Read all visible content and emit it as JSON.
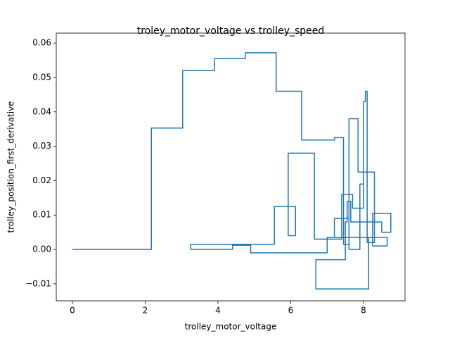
{
  "chart_data": {
    "type": "line",
    "title": "troley_motor_voltage vs trolley_speed",
    "x_label": "trolley_motor_voltage",
    "y_label": "trolley_position_first_derivative",
    "xlim": [
      -0.444,
      9.14
    ],
    "ylim": [
      -0.01495,
      0.0629
    ],
    "xticks": [
      0,
      2,
      4,
      6,
      8
    ],
    "yticks": [
      {
        "value": -0.01,
        "label": "−0.01"
      },
      {
        "value": 0,
        "label": "0.00"
      },
      {
        "value": 0.01,
        "label": "0.01"
      },
      {
        "value": 0.02,
        "label": "0.02"
      },
      {
        "value": 0.03,
        "label": "0.03"
      },
      {
        "value": 0.04,
        "label": "0.04"
      },
      {
        "value": 0.05,
        "label": "0.05"
      },
      {
        "value": 0.06,
        "label": "0.06"
      }
    ],
    "series": [
      {
        "color": "#1f77b4",
        "x": [
          0,
          2.17,
          2.17,
          3.03,
          3.03,
          3.9,
          3.9,
          4.75,
          4.75,
          5.6,
          5.6,
          6.3,
          6.3,
          7.2,
          7.2,
          7.45,
          7.45,
          7.6,
          7.6,
          7.85,
          7.85,
          8.3,
          8.3,
          8.1,
          8.1,
          8.05,
          8.05,
          8.0,
          8.0,
          7.7,
          7.7,
          7.4,
          7.4,
          6.65,
          6.65,
          5.93,
          5.93,
          6.13,
          6.13,
          5.55,
          5.55,
          3.25,
          3.25,
          4.4,
          4.4,
          4.9,
          4.9,
          7.0,
          7.0,
          8.14,
          8.14,
          6.69,
          6.69,
          7.5,
          7.5,
          7.55,
          7.55,
          7.65,
          7.65,
          8.5,
          8.5,
          8.75,
          8.75,
          8.25,
          8.25,
          8.65,
          8.65,
          7.2,
          7.2,
          7.6,
          7.6,
          7.9,
          7.9,
          8.0
        ],
        "values": [
          0,
          0,
          0.0353,
          0.0353,
          0.052,
          0.052,
          0.0555,
          0.0555,
          0.0572,
          0.0572,
          0.046,
          0.046,
          0.0318,
          0.0318,
          0.0325,
          0.0325,
          0.0015,
          0.0015,
          0.038,
          0.038,
          0.0225,
          0.0225,
          0.002,
          0.002,
          0.046,
          0.046,
          0.043,
          0.043,
          0.012,
          0.012,
          0.016,
          0.016,
          0.003,
          0.003,
          0.028,
          0.028,
          0.004,
          0.004,
          0.0125,
          0.0125,
          0.0015,
          0.0015,
          0,
          0,
          0.0012,
          0.0012,
          -0.001,
          -0.001,
          0.0035,
          0.0035,
          -0.0115,
          -0.0115,
          -0.003,
          -0.003,
          0.008,
          0.008,
          0.014,
          0.014,
          0.008,
          0.008,
          0.005,
          0.005,
          0.0105,
          0.0105,
          0.001,
          0.001,
          0.0035,
          0.0035,
          0.009,
          0.009,
          0,
          0,
          0.019,
          0.019
        ]
      }
    ]
  }
}
